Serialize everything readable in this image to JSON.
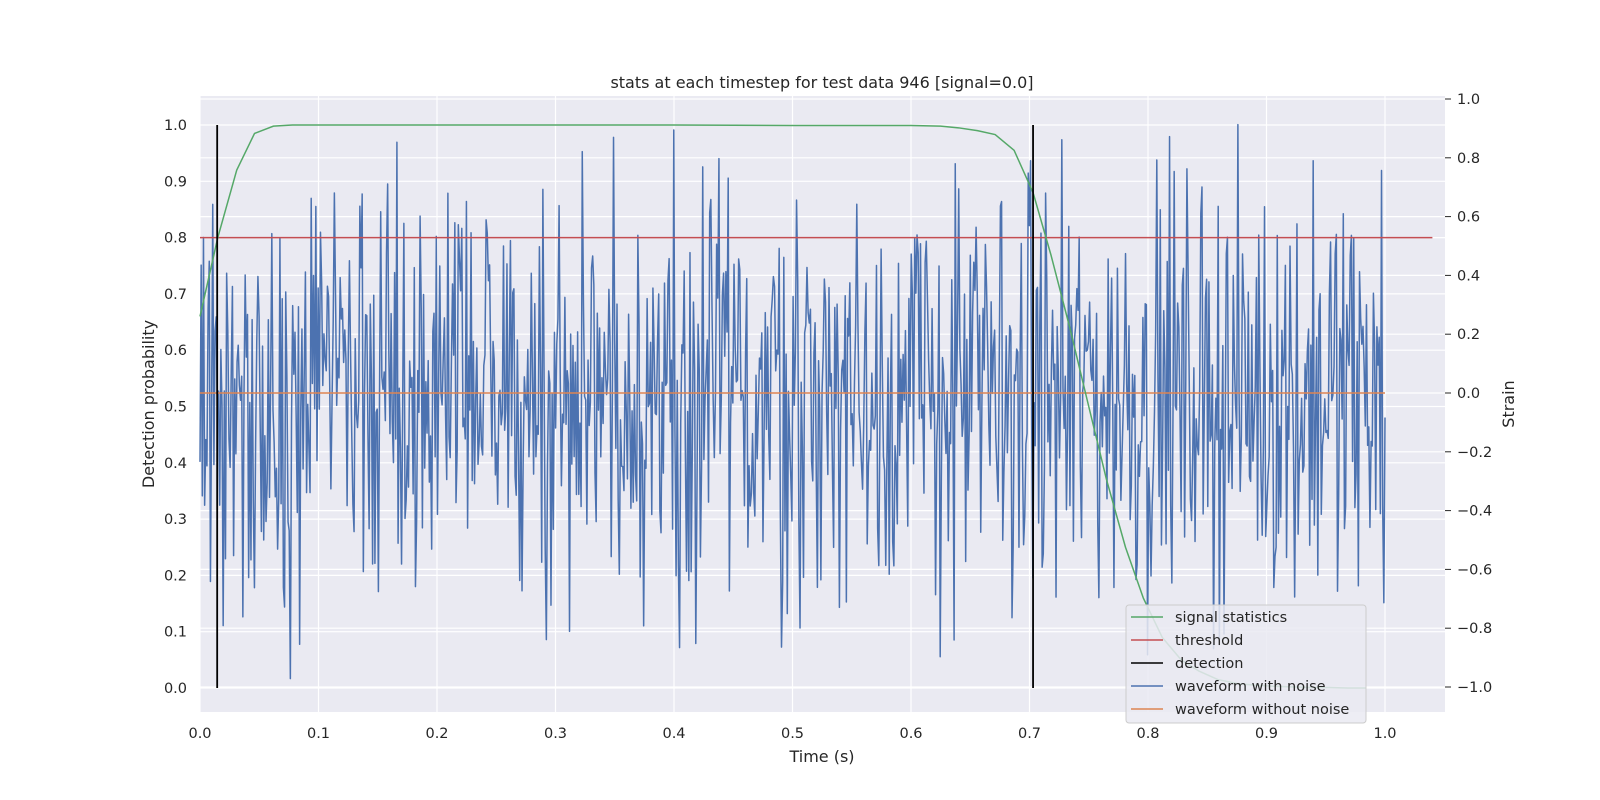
{
  "chart_data": {
    "type": "line",
    "title": "stats at each timestep for test data 946 [signal=0.0]",
    "xlabel": "Time (s)",
    "ylabel": "Detection probability",
    "y2label": "Strain",
    "xlim": [
      0.0,
      1.05
    ],
    "ylim": [
      -0.05,
      1.05
    ],
    "y2lim": [
      -1.09,
      1.0
    ],
    "xticks": [
      0.0,
      0.1,
      0.2,
      0.3,
      0.4,
      0.5,
      0.6,
      0.7,
      0.8,
      0.9,
      1.0
    ],
    "xtick_labels": [
      "0.0",
      "0.1",
      "0.2",
      "0.3",
      "0.4",
      "0.5",
      "0.6",
      "0.7",
      "0.8",
      "0.9",
      "1.0"
    ],
    "yticks": [
      0.0,
      0.1,
      0.2,
      0.3,
      0.4,
      0.5,
      0.6,
      0.7,
      0.8,
      0.9,
      1.0
    ],
    "ytick_labels": [
      "0.0",
      "0.1",
      "0.2",
      "0.3",
      "0.4",
      "0.5",
      "0.6",
      "0.7",
      "0.8",
      "0.9",
      "1.0"
    ],
    "y2ticks": [
      -1.0,
      -0.8,
      -0.6,
      -0.4,
      -0.2,
      0.0,
      0.2,
      0.4,
      0.6,
      0.8,
      1.0
    ],
    "y2tick_labels": [
      "−1.0",
      "−0.8",
      "−0.6",
      "−0.4",
      "−0.2",
      "0.0",
      "0.2",
      "0.4",
      "0.6",
      "0.8",
      "1.0"
    ],
    "grid": true,
    "legend_position": "lower right",
    "series": [
      {
        "name": "signal statistics",
        "axis": "left",
        "color": "#55a868",
        "x": [
          0.0,
          0.015,
          0.031,
          0.046,
          0.062,
          0.078,
          0.1,
          0.2,
          0.3,
          0.4,
          0.5,
          0.6,
          0.625,
          0.64,
          0.656,
          0.671,
          0.687,
          0.703,
          0.718,
          0.734,
          0.75,
          0.765,
          0.781,
          0.796,
          0.812,
          0.828,
          0.843,
          0.859,
          0.875,
          0.89,
          0.906,
          0.921,
          0.937,
          0.953,
          0.968,
          0.984
        ],
        "y": [
          0.66,
          0.8,
          0.92,
          0.985,
          0.998,
          1.0,
          1.0,
          1.0,
          1.0,
          1.0,
          0.999,
          0.999,
          0.998,
          0.995,
          0.99,
          0.983,
          0.955,
          0.88,
          0.77,
          0.64,
          0.5,
          0.37,
          0.25,
          0.16,
          0.09,
          0.05,
          0.03,
          0.015,
          0.008,
          0.005,
          0.003,
          0.002,
          0.001,
          0.001,
          0.0,
          0.0
        ]
      },
      {
        "name": "threshold",
        "axis": "left",
        "color": "#c44e52",
        "x": [
          0.0,
          1.04
        ],
        "y": [
          0.8,
          0.8
        ]
      },
      {
        "name": "detection",
        "axis": "left",
        "color": "#000000",
        "x": [
          0.0145,
          0.703
        ],
        "y": [
          1.0,
          1.0
        ]
      },
      {
        "name": "waveform with noise",
        "axis": "right",
        "color": "#4c72b0",
        "x_start": 0.0,
        "x_end": 1.0,
        "n_samples": 1024,
        "min": -1.0,
        "max": 1.0
      },
      {
        "name": "waveform without noise",
        "axis": "right",
        "color": "#dd8452",
        "x": [
          0.0,
          1.0
        ],
        "y": [
          0.0,
          0.0
        ]
      }
    ]
  }
}
